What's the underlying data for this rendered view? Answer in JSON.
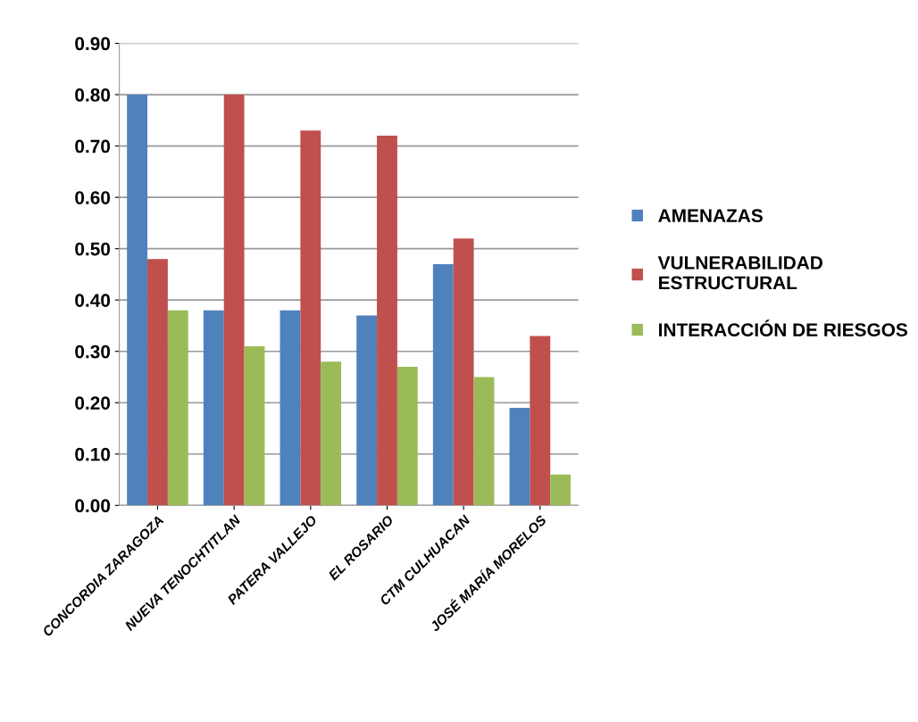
{
  "chart_data": {
    "type": "bar",
    "categories": [
      "CONCORDIA ZARAGOZA",
      "NUEVA TENOCHTITLAN",
      "PATERA VALLEJO",
      "EL ROSARIO",
      "CTM CULHUACAN",
      "JOSÉ MARÍA MORELOS"
    ],
    "series": [
      {
        "name": "AMENAZAS",
        "color": "#4f81bd",
        "values": [
          0.8,
          0.38,
          0.38,
          0.37,
          0.47,
          0.19
        ]
      },
      {
        "name": "VULNERABILIDAD\nESTRUCTURAL",
        "color": "#c0504d",
        "values": [
          0.48,
          0.8,
          0.73,
          0.72,
          0.52,
          0.33
        ]
      },
      {
        "name": "INTERACCIÓN DE RIESGOS",
        "color": "#9bbb59",
        "values": [
          0.38,
          0.31,
          0.28,
          0.27,
          0.25,
          0.06
        ]
      }
    ],
    "ylim": [
      0,
      0.9
    ],
    "yticks": [
      {
        "value": 0,
        "label": "0.00"
      },
      {
        "value": 0.1,
        "label": "0.10"
      },
      {
        "value": 0.2,
        "label": "0.20"
      },
      {
        "value": 0.3,
        "label": "0.30"
      },
      {
        "value": 0.4,
        "label": "0.40"
      },
      {
        "value": 0.5,
        "label": "0.50"
      },
      {
        "value": 0.6,
        "label": "0.60"
      },
      {
        "value": 0.7,
        "label": "0.70"
      },
      {
        "value": 0.8,
        "label": "0.80"
      },
      {
        "value": 0.9,
        "label": "0.90"
      }
    ],
    "grid": "y",
    "legend": "right"
  }
}
